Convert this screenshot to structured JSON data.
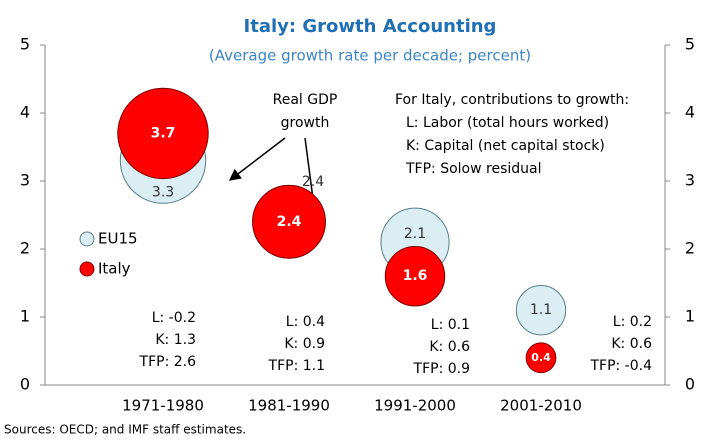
{
  "chart_data": {
    "type": "bubble",
    "title": "Italy: Growth Accounting",
    "subtitle": "(Average growth rate per decade; percent)",
    "categories": [
      "1971-1980",
      "1981-1990",
      "1991-2000",
      "2001-2010"
    ],
    "series": [
      {
        "name": "EU15",
        "color": "#dbeef4",
        "values": [
          3.3,
          2.4,
          2.1,
          1.1
        ]
      },
      {
        "name": "Italy",
        "color": "#ff0000",
        "values": [
          3.7,
          2.4,
          1.6,
          0.4
        ]
      }
    ],
    "ylim": [
      0,
      5
    ],
    "yticks": [
      0,
      1,
      2,
      3,
      4,
      5
    ],
    "y2lim": [
      0,
      5
    ],
    "y2ticks": [
      0,
      1,
      2,
      3,
      4,
      5
    ],
    "annotation": [
      "Real GDP",
      "growth"
    ],
    "note": [
      "For Italy, contributions to growth:",
      "L: Labor (total hours worked)",
      "K: Capital (net capital stock)",
      "TFP: Solow residual"
    ],
    "contributions": [
      [
        "L: -0.2",
        "K: 1.3",
        "TFP: 2.6"
      ],
      [
        "L: 0.4",
        "K: 0.9",
        "TFP: 1.1"
      ],
      [
        "L: 0.1",
        "K: 0.6",
        "TFP: 0.9"
      ],
      [
        "L: 0.2",
        "K: 0.6",
        "TFP: -0.4"
      ]
    ],
    "source": "Sources: OECD; and IMF staff estimates."
  }
}
